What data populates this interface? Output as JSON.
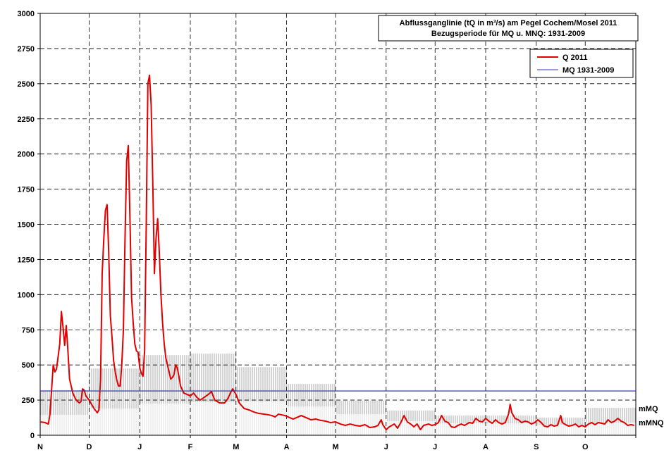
{
  "chart_data": {
    "type": "line",
    "title": "Abflussganglinie (tQ in m³/s) am Pegel Cochem/Mosel 2011",
    "subtitle": "Bezugsperiode für MQ u. MNQ: 1931-2009",
    "ylim": [
      0,
      3000
    ],
    "yticks": [
      0,
      250,
      500,
      750,
      1000,
      1250,
      1500,
      1750,
      2000,
      2250,
      2500,
      2750,
      3000
    ],
    "ytick_labels": [
      "0",
      "250",
      "500",
      "750",
      "1000",
      "1250",
      "1500",
      "1750",
      "2000",
      "2250",
      "2500",
      "2750",
      "3000"
    ],
    "x_months": [
      "N",
      "D",
      "J",
      "F",
      "M",
      "A",
      "M",
      "J",
      "J",
      "A",
      "S",
      "O"
    ],
    "x_range_days": 365,
    "month_days": [
      30,
      31,
      31,
      28,
      31,
      30,
      31,
      30,
      31,
      31,
      30,
      31
    ],
    "grid": true,
    "legend_position": "top-right",
    "legend": [
      {
        "label": "Q 2011",
        "color": "#e00000"
      },
      {
        "label": "MQ 1931-2009",
        "color": "#3030c0"
      }
    ],
    "right_labels": {
      "mmq": "mMQ",
      "mmnq": "mMNQ"
    },
    "mq_value": 315,
    "monthly_band": {
      "mMQ": [
        320,
        475,
        570,
        580,
        485,
        365,
        245,
        175,
        140,
        140,
        125,
        195
      ],
      "mMNQ": [
        145,
        190,
        225,
        235,
        240,
        205,
        150,
        100,
        85,
        85,
        75,
        90
      ]
    },
    "series": [
      {
        "name": "Q 2011",
        "color": "#e00000",
        "points": [
          [
            0,
            95
          ],
          [
            3,
            90
          ],
          [
            5,
            80
          ],
          [
            6,
            150
          ],
          [
            8,
            500
          ],
          [
            9,
            450
          ],
          [
            10,
            470
          ],
          [
            12,
            650
          ],
          [
            13,
            880
          ],
          [
            14,
            770
          ],
          [
            15,
            640
          ],
          [
            16,
            780
          ],
          [
            17,
            600
          ],
          [
            18,
            400
          ],
          [
            20,
            300
          ],
          [
            22,
            250
          ],
          [
            24,
            230
          ],
          [
            25,
            240
          ],
          [
            26,
            330
          ],
          [
            27,
            320
          ],
          [
            28,
            280
          ],
          [
            30,
            250
          ],
          [
            31,
            230
          ],
          [
            33,
            190
          ],
          [
            35,
            160
          ],
          [
            36,
            180
          ],
          [
            37,
            400
          ],
          [
            38,
            1150
          ],
          [
            39,
            1400
          ],
          [
            40,
            1600
          ],
          [
            41,
            1640
          ],
          [
            42,
            1300
          ],
          [
            43,
            850
          ],
          [
            44,
            700
          ],
          [
            45,
            530
          ],
          [
            46,
            450
          ],
          [
            47,
            390
          ],
          [
            48,
            350
          ],
          [
            49,
            350
          ],
          [
            50,
            500
          ],
          [
            51,
            750
          ],
          [
            52,
            1400
          ],
          [
            53,
            1950
          ],
          [
            54,
            2060
          ],
          [
            55,
            1550
          ],
          [
            56,
            980
          ],
          [
            57,
            800
          ],
          [
            58,
            650
          ],
          [
            59,
            600
          ],
          [
            60,
            590
          ],
          [
            61,
            480
          ],
          [
            62,
            440
          ],
          [
            63,
            420
          ],
          [
            64,
            600
          ],
          [
            65,
            1500
          ],
          [
            66,
            2500
          ],
          [
            67,
            2560
          ],
          [
            68,
            2350
          ],
          [
            69,
            1800
          ],
          [
            70,
            1150
          ],
          [
            71,
            1400
          ],
          [
            72,
            1540
          ],
          [
            73,
            1300
          ],
          [
            74,
            1000
          ],
          [
            75,
            800
          ],
          [
            76,
            650
          ],
          [
            77,
            550
          ],
          [
            79,
            450
          ],
          [
            80,
            400
          ],
          [
            81,
            410
          ],
          [
            82,
            430
          ],
          [
            83,
            500
          ],
          [
            84,
            480
          ],
          [
            85,
            420
          ],
          [
            86,
            350
          ],
          [
            88,
            300
          ],
          [
            90,
            290
          ],
          [
            92,
            280
          ],
          [
            94,
            300
          ],
          [
            96,
            270
          ],
          [
            98,
            250
          ],
          [
            100,
            265
          ],
          [
            103,
            290
          ],
          [
            105,
            310
          ],
          [
            107,
            250
          ],
          [
            110,
            230
          ],
          [
            113,
            230
          ],
          [
            115,
            260
          ],
          [
            117,
            310
          ],
          [
            118,
            330
          ],
          [
            120,
            290
          ],
          [
            122,
            230
          ],
          [
            125,
            190
          ],
          [
            128,
            180
          ],
          [
            131,
            165
          ],
          [
            134,
            155
          ],
          [
            137,
            150
          ],
          [
            140,
            145
          ],
          [
            142,
            140
          ],
          [
            144,
            130
          ],
          [
            146,
            150
          ],
          [
            148,
            145
          ],
          [
            150,
            140
          ],
          [
            152,
            130
          ],
          [
            155,
            115
          ],
          [
            157,
            125
          ],
          [
            160,
            140
          ],
          [
            163,
            125
          ],
          [
            166,
            110
          ],
          [
            169,
            115
          ],
          [
            172,
            105
          ],
          [
            175,
            100
          ],
          [
            178,
            90
          ],
          [
            181,
            95
          ],
          [
            184,
            80
          ],
          [
            187,
            70
          ],
          [
            190,
            80
          ],
          [
            193,
            70
          ],
          [
            196,
            65
          ],
          [
            199,
            75
          ],
          [
            202,
            55
          ],
          [
            205,
            60
          ],
          [
            207,
            70
          ],
          [
            209,
            110
          ],
          [
            210,
            75
          ],
          [
            212,
            40
          ],
          [
            214,
            60
          ],
          [
            217,
            80
          ],
          [
            219,
            50
          ],
          [
            221,
            90
          ],
          [
            223,
            140
          ],
          [
            225,
            95
          ],
          [
            227,
            80
          ],
          [
            229,
            60
          ],
          [
            231,
            80
          ],
          [
            233,
            40
          ],
          [
            235,
            70
          ],
          [
            238,
            80
          ],
          [
            240,
            70
          ],
          [
            242,
            75
          ],
          [
            244,
            90
          ],
          [
            246,
            140
          ],
          [
            248,
            100
          ],
          [
            250,
            90
          ],
          [
            252,
            60
          ],
          [
            254,
            55
          ],
          [
            256,
            70
          ],
          [
            258,
            80
          ],
          [
            260,
            70
          ],
          [
            263,
            90
          ],
          [
            265,
            85
          ],
          [
            267,
            120
          ],
          [
            269,
            100
          ],
          [
            271,
            95
          ],
          [
            273,
            120
          ],
          [
            275,
            100
          ],
          [
            277,
            85
          ],
          [
            279,
            110
          ],
          [
            281,
            90
          ],
          [
            283,
            80
          ],
          [
            285,
            90
          ],
          [
            287,
            150
          ],
          [
            288,
            220
          ],
          [
            289,
            160
          ],
          [
            291,
            120
          ],
          [
            293,
            110
          ],
          [
            295,
            90
          ],
          [
            297,
            100
          ],
          [
            299,
            95
          ],
          [
            301,
            80
          ],
          [
            303,
            90
          ],
          [
            305,
            110
          ],
          [
            307,
            90
          ],
          [
            309,
            65
          ],
          [
            311,
            60
          ],
          [
            313,
            75
          ],
          [
            315,
            65
          ],
          [
            317,
            70
          ],
          [
            319,
            140
          ],
          [
            320,
            90
          ],
          [
            322,
            75
          ],
          [
            324,
            65
          ],
          [
            326,
            70
          ],
          [
            328,
            80
          ],
          [
            330,
            60
          ],
          [
            332,
            70
          ],
          [
            334,
            60
          ],
          [
            336,
            80
          ],
          [
            338,
            90
          ],
          [
            340,
            75
          ],
          [
            342,
            90
          ],
          [
            344,
            85
          ],
          [
            346,
            80
          ],
          [
            348,
            110
          ],
          [
            350,
            90
          ],
          [
            352,
            100
          ],
          [
            354,
            120
          ],
          [
            356,
            100
          ],
          [
            358,
            90
          ],
          [
            360,
            70
          ],
          [
            362,
            75
          ],
          [
            364,
            70
          ]
        ]
      },
      {
        "name": "MQ 1931-2009",
        "color": "#3030c0",
        "points": [
          [
            0,
            315
          ],
          [
            365,
            315
          ]
        ]
      }
    ]
  }
}
